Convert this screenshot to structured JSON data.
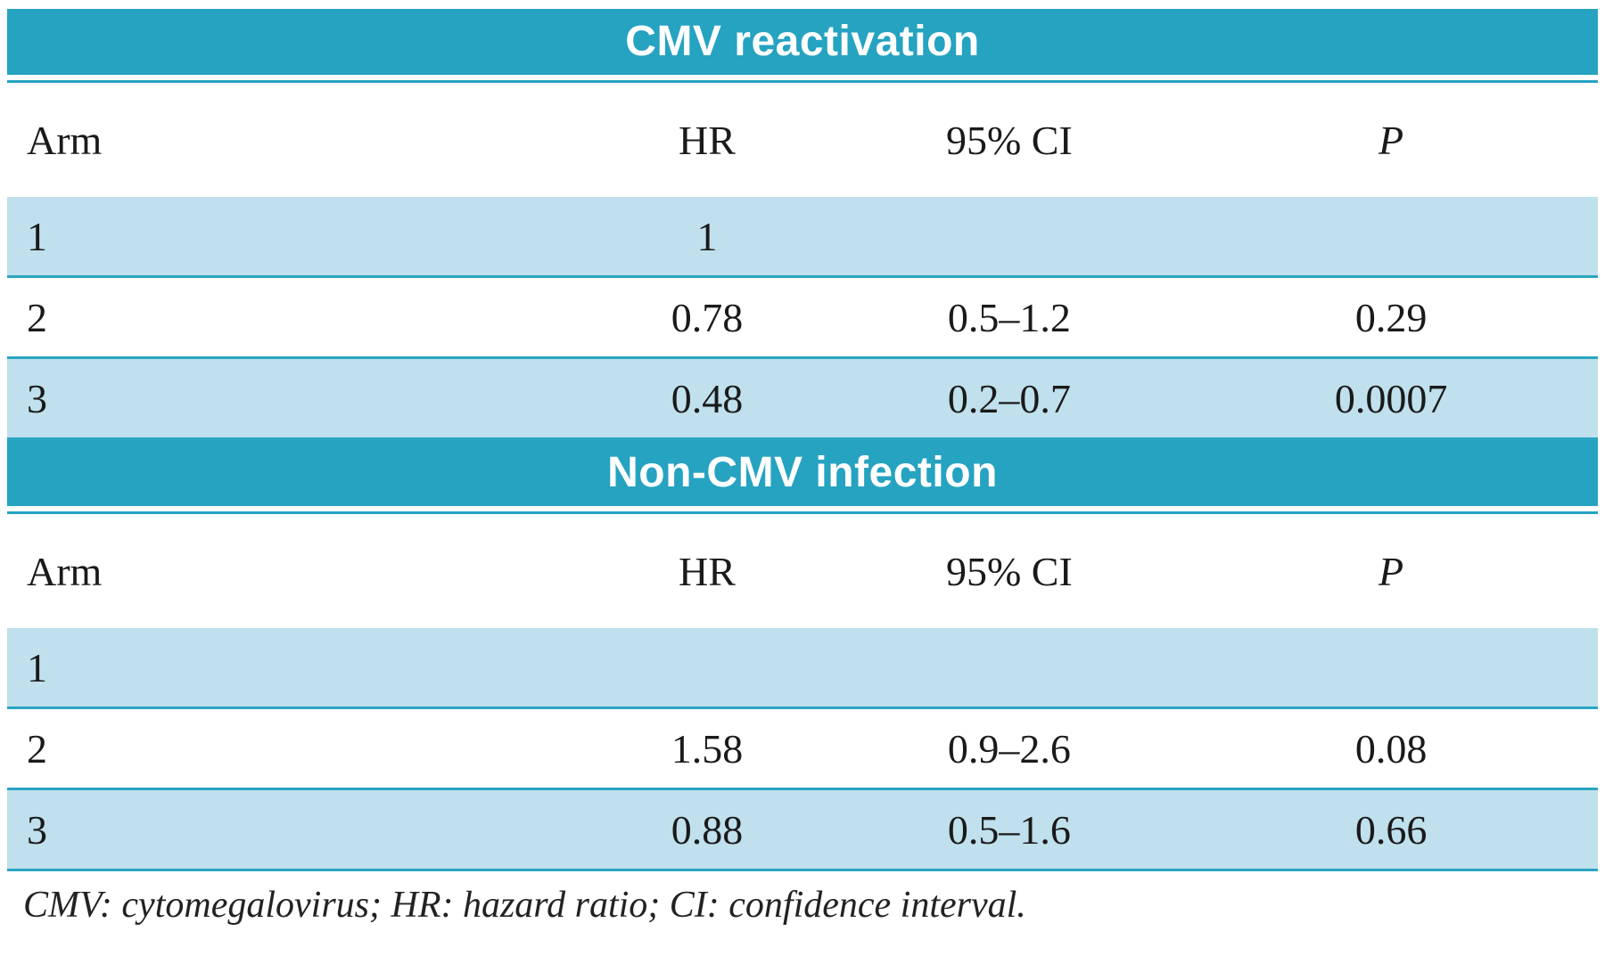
{
  "accent": {
    "header_bg": "#25a3c1",
    "row_shaded_bg": "#bfe0ec",
    "rule_color": "#2aa5c2"
  },
  "sections": [
    {
      "title": "CMV reactivation",
      "columns": {
        "arm": "Arm",
        "hr": "HR",
        "ci": "95% CI",
        "p": "P"
      },
      "rows": [
        {
          "arm": "1",
          "hr": "1",
          "ci": "",
          "p": ""
        },
        {
          "arm": "2",
          "hr": "0.78",
          "ci": "0.5–1.2",
          "p": "0.29"
        },
        {
          "arm": "3",
          "hr": "0.48",
          "ci": "0.2–0.7",
          "p": "0.0007"
        }
      ]
    },
    {
      "title": "Non-CMV infection",
      "columns": {
        "arm": "Arm",
        "hr": "HR",
        "ci": "95% CI",
        "p": "P"
      },
      "rows": [
        {
          "arm": "1",
          "hr": "",
          "ci": "",
          "p": ""
        },
        {
          "arm": "2",
          "hr": "1.58",
          "ci": "0.9–2.6",
          "p": "0.08"
        },
        {
          "arm": "3",
          "hr": "0.88",
          "ci": "0.5–1.6",
          "p": "0.66"
        }
      ]
    }
  ],
  "footnote": "CMV: cytomegalovirus; HR: hazard ratio; CI: confidence interval."
}
